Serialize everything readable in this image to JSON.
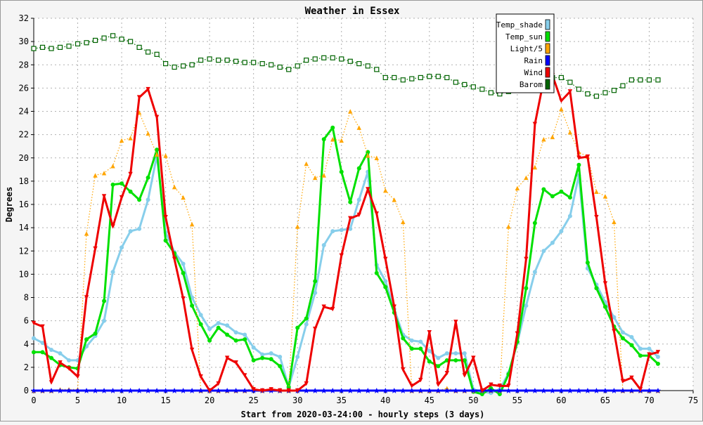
{
  "chart_data": {
    "type": "line",
    "title": "Weather in Essex",
    "xlabel": "Start from 2020-03-24:00 - hourly steps (3 days)",
    "ylabel": "Degrees",
    "xlim": [
      0,
      75
    ],
    "ylim": [
      0,
      32
    ],
    "x_ticks": [
      0,
      5,
      10,
      15,
      20,
      25,
      30,
      35,
      40,
      45,
      50,
      55,
      60,
      65,
      70,
      75
    ],
    "y_ticks": [
      0,
      2,
      4,
      6,
      8,
      10,
      12,
      14,
      16,
      18,
      20,
      22,
      24,
      26,
      28,
      30,
      32
    ],
    "grid": true,
    "legend_position": "top-right",
    "x": [
      0,
      1,
      2,
      3,
      4,
      5,
      6,
      7,
      8,
      9,
      10,
      11,
      12,
      13,
      14,
      15,
      16,
      17,
      18,
      19,
      20,
      21,
      22,
      23,
      24,
      25,
      26,
      27,
      28,
      29,
      30,
      31,
      32,
      33,
      34,
      35,
      36,
      37,
      38,
      39,
      40,
      41,
      42,
      43,
      44,
      45,
      46,
      47,
      48,
      49,
      50,
      51,
      52,
      53,
      54,
      55,
      56,
      57,
      58,
      59,
      60,
      61,
      62,
      63,
      64,
      65,
      66,
      67,
      68,
      69,
      70,
      71
    ],
    "series": [
      {
        "name": "Temp_shade",
        "color": "#87CEEB",
        "marker": "circle",
        "values": [
          4.5,
          4.1,
          3.5,
          3.2,
          2.6,
          2.6,
          3.8,
          4.7,
          6.0,
          10.2,
          12.3,
          13.7,
          13.9,
          16.4,
          20.2,
          13.6,
          11.9,
          10.9,
          8.0,
          6.5,
          5.3,
          5.8,
          5.6,
          5.0,
          4.8,
          3.7,
          3.1,
          3.2,
          2.9,
          0.3,
          2.9,
          5.7,
          8.4,
          12.5,
          13.7,
          13.8,
          13.9,
          16.4,
          18.8,
          10.8,
          9.4,
          7.0,
          4.8,
          4.3,
          4.2,
          3.4,
          2.8,
          3.2,
          3.2,
          3.2,
          0.1,
          -0.1,
          -0.2,
          0.1,
          1.5,
          4.1,
          7.3,
          10.2,
          12.0,
          12.7,
          13.7,
          15.0,
          18.5,
          10.5,
          9.1,
          7.6,
          6.3,
          5.0,
          4.6,
          3.6,
          3.6,
          2.9
        ]
      },
      {
        "name": "Temp_sun",
        "color": "#00E000",
        "marker": "circle",
        "values": [
          3.3,
          3.3,
          2.8,
          2.2,
          2.0,
          1.9,
          4.4,
          4.9,
          7.7,
          17.7,
          17.8,
          17.1,
          16.4,
          18.3,
          20.7,
          12.9,
          11.8,
          10.1,
          7.3,
          5.7,
          4.3,
          5.4,
          4.8,
          4.3,
          4.4,
          2.6,
          2.8,
          2.7,
          2.1,
          0.3,
          5.4,
          6.2,
          9.4,
          21.6,
          22.6,
          18.8,
          16.2,
          19.1,
          20.5,
          10.1,
          8.9,
          6.7,
          4.5,
          3.6,
          3.6,
          2.5,
          2.1,
          2.6,
          2.6,
          2.6,
          -0.1,
          -0.3,
          0.2,
          -0.3,
          1.4,
          4.2,
          8.8,
          14.4,
          17.3,
          16.7,
          17.1,
          16.6,
          19.4,
          11.0,
          8.8,
          7.2,
          5.5,
          4.5,
          3.9,
          3.0,
          3.0,
          2.3
        ]
      },
      {
        "name": "Light/5",
        "color": "#FFA500",
        "marker": "triangle-up",
        "values": [
          0,
          0,
          0,
          0.1,
          0.1,
          0.1,
          13.5,
          18.5,
          18.7,
          19.3,
          21.5,
          21.7,
          23.9,
          22.1,
          20.3,
          20.2,
          17.5,
          16.6,
          14.3,
          0,
          0,
          0,
          0,
          0,
          0,
          0.2,
          0,
          0.1,
          0,
          0,
          14.1,
          19.5,
          18.3,
          18.5,
          21.6,
          21.5,
          24.0,
          22.6,
          20.2,
          20.0,
          17.2,
          16.4,
          14.5,
          0,
          0,
          0,
          0,
          0.2,
          0,
          0,
          0,
          0,
          0,
          0,
          14.1,
          17.4,
          18.3,
          19.2,
          21.6,
          21.8,
          24.2,
          22.2,
          20.5,
          20.1,
          17.1,
          16.7,
          14.5,
          0,
          0,
          0,
          0,
          0
        ]
      },
      {
        "name": "Rain",
        "color": "#0000FF",
        "marker": "star",
        "values": [
          0,
          0,
          0,
          0,
          0,
          0,
          0,
          0,
          0,
          0,
          0,
          0,
          0,
          0,
          0,
          0,
          0,
          0,
          0,
          0,
          0,
          0,
          0,
          0,
          0,
          0,
          0,
          0,
          0,
          0,
          0,
          0,
          0,
          0,
          0,
          0,
          0,
          0,
          0,
          0,
          0,
          0,
          0,
          0,
          0,
          0,
          0,
          0,
          0,
          0,
          0,
          0,
          0,
          0,
          0,
          0,
          0,
          0,
          0,
          0,
          0,
          0,
          0,
          0,
          0,
          0,
          0,
          0,
          0,
          0,
          0,
          0
        ]
      },
      {
        "name": "Wind",
        "color": "#EE0000",
        "marker": "triangle-down",
        "values": [
          5.8,
          5.5,
          0.7,
          2.4,
          1.9,
          1.2,
          8.0,
          12.2,
          16.7,
          14.1,
          16.6,
          18.6,
          25.2,
          25.9,
          23.5,
          14.9,
          11.3,
          7.9,
          3.5,
          1.2,
          0,
          0.6,
          2.8,
          2.4,
          1.3,
          0.1,
          0,
          0.1,
          0,
          0,
          0,
          0.6,
          5.3,
          7.2,
          7.0,
          11.6,
          14.8,
          15.1,
          17.3,
          15.2,
          11.3,
          7.2,
          1.8,
          0.4,
          0.9,
          5.0,
          0.5,
          1.5,
          5.9,
          1.3,
          2.8,
          0,
          0.5,
          0.4,
          0.4,
          4.9,
          11.3,
          22.9,
          26.7,
          27.1,
          24.9,
          25.7,
          20.0,
          20.1,
          14.9,
          9.2,
          5.1,
          0.8,
          1.1,
          0.1,
          3.1,
          3.3
        ]
      },
      {
        "name": "Barom",
        "color": "#006400",
        "marker": "square",
        "values": [
          29.4,
          29.5,
          29.4,
          29.5,
          29.6,
          29.8,
          29.9,
          30.1,
          30.3,
          30.5,
          30.2,
          30.0,
          29.5,
          29.1,
          28.9,
          28.1,
          27.8,
          27.9,
          28.0,
          28.4,
          28.5,
          28.4,
          28.4,
          28.3,
          28.2,
          28.2,
          28.1,
          28.0,
          27.8,
          27.6,
          27.9,
          28.4,
          28.5,
          28.6,
          28.6,
          28.5,
          28.3,
          28.1,
          27.9,
          27.6,
          26.9,
          26.9,
          26.7,
          26.8,
          26.9,
          27.0,
          27.0,
          26.9,
          26.5,
          26.3,
          26.1,
          25.9,
          25.6,
          25.5,
          25.7,
          26.0,
          26.3,
          26.5,
          26.8,
          26.9,
          26.9,
          26.5,
          25.9,
          25.5,
          25.3,
          25.6,
          25.8,
          26.2,
          26.7,
          26.7,
          26.7,
          26.7
        ]
      }
    ]
  }
}
